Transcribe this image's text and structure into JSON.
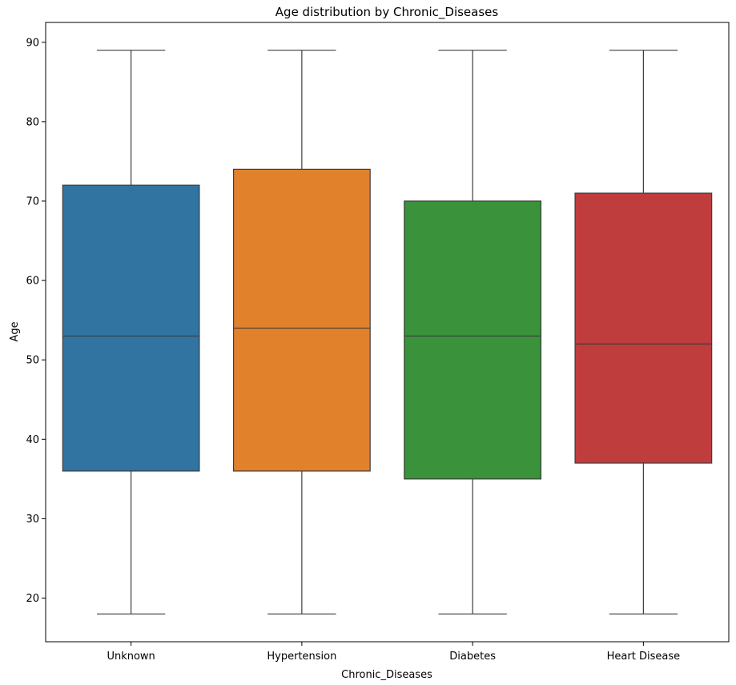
{
  "chart_data": {
    "type": "box",
    "title": "Age distribution by Chronic_Diseases",
    "xlabel": "Chronic_Diseases",
    "ylabel": "Age",
    "ylim": [
      14.5,
      92.5
    ],
    "yticks": [
      20,
      30,
      40,
      50,
      60,
      70,
      80,
      90
    ],
    "grid": false,
    "categories": [
      "Unknown",
      "Hypertension",
      "Diabetes",
      "Heart Disease"
    ],
    "boxes": [
      {
        "category": "Unknown",
        "min": 18,
        "q1": 36,
        "median": 53,
        "q3": 72,
        "max": 89,
        "color": "#3274a1"
      },
      {
        "category": "Hypertension",
        "min": 18,
        "q1": 36,
        "median": 54,
        "q3": 74,
        "max": 89,
        "color": "#e1812c"
      },
      {
        "category": "Diabetes",
        "min": 18,
        "q1": 35,
        "median": 53,
        "q3": 70,
        "max": 89,
        "color": "#3a923a"
      },
      {
        "category": "Heart Disease",
        "min": 18,
        "q1": 37,
        "median": 52,
        "q3": 71,
        "max": 89,
        "color": "#c03d3e"
      }
    ]
  }
}
